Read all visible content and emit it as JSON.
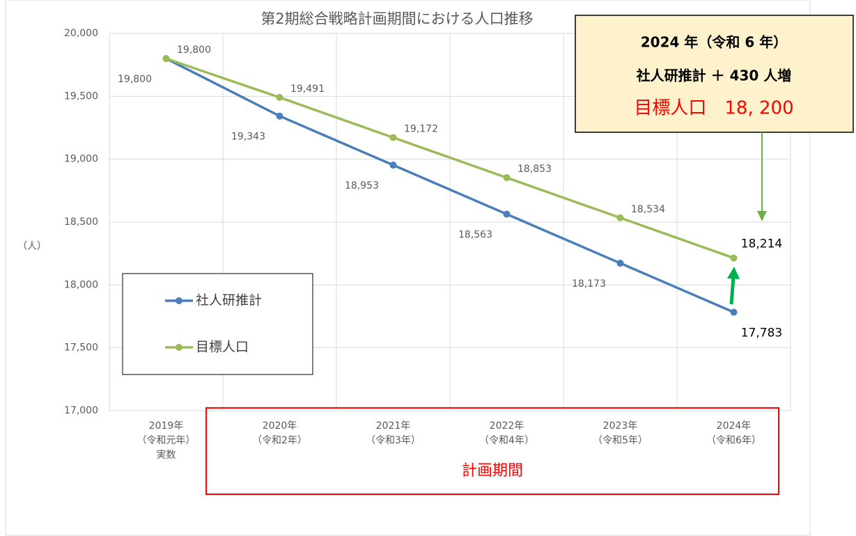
{
  "chart_data": {
    "type": "line",
    "title": "第2期総合戦略計画期間における人口推移",
    "y_axis_label": "（人）",
    "categories": [
      "2019年\n（令和元年）\n実数",
      "2020年\n（令和2年）",
      "2021年\n（令和3年）",
      "2022年\n（令和4年）",
      "2023年\n（令和5年）",
      "2024年\n（令和6年）"
    ],
    "series": [
      {
        "name": "社人研推計",
        "color": "#4a7ebb",
        "values": [
          19800,
          19343,
          18953,
          18563,
          18173,
          17783
        ],
        "value_labels": [
          "19,800",
          "19,343",
          "18,953",
          "18,563",
          "18,173",
          "17,783"
        ]
      },
      {
        "name": "目標人口",
        "color": "#9bbb59",
        "values": [
          19800,
          19491,
          19172,
          18853,
          18534,
          18214
        ],
        "value_labels": [
          "19,800",
          "19,491",
          "19,172",
          "18,853",
          "18,534",
          "18,214"
        ]
      }
    ],
    "ylim": [
      17000,
      20000
    ],
    "yticks": [
      {
        "value": 17000,
        "label": "17,000"
      },
      {
        "value": 17500,
        "label": "17,500"
      },
      {
        "value": 18000,
        "label": "18,000"
      },
      {
        "value": 18500,
        "label": "18,500"
      },
      {
        "value": 19000,
        "label": "19,000"
      },
      {
        "value": 19500,
        "label": "19,500"
      },
      {
        "value": 20000,
        "label": "20,000"
      }
    ],
    "grid": true,
    "legend": "bottom-left",
    "annotations": {
      "callout": [
        "2024 年（令和 6 年）",
        "社人研推計 ＋ 430 人増",
        "目標人口　18, 200"
      ],
      "period": "計画期間"
    }
  }
}
